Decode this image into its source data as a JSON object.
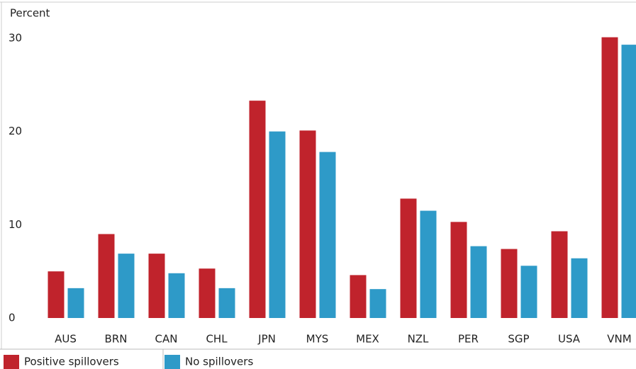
{
  "chart_data": {
    "type": "bar",
    "y_axis_label": "Percent",
    "categories": [
      "AUS",
      "BRN",
      "CAN",
      "CHL",
      "JPN",
      "MYS",
      "MEX",
      "NZL",
      "PER",
      "SGP",
      "USA",
      "VNM"
    ],
    "series": [
      {
        "name": "Positive spillovers",
        "color": "#c0232c",
        "values": [
          5.0,
          9.0,
          6.9,
          5.3,
          23.3,
          20.1,
          4.6,
          12.8,
          10.3,
          7.4,
          9.3,
          30.1
        ]
      },
      {
        "name": "No spillovers",
        "color": "#2e9ac8",
        "values": [
          3.2,
          6.9,
          4.8,
          3.2,
          20.0,
          17.8,
          3.1,
          11.5,
          7.7,
          5.6,
          6.4,
          29.3
        ]
      }
    ],
    "ylim": [
      0,
      33
    ],
    "yticks": [
      0,
      10,
      20,
      30
    ],
    "grid": false
  }
}
